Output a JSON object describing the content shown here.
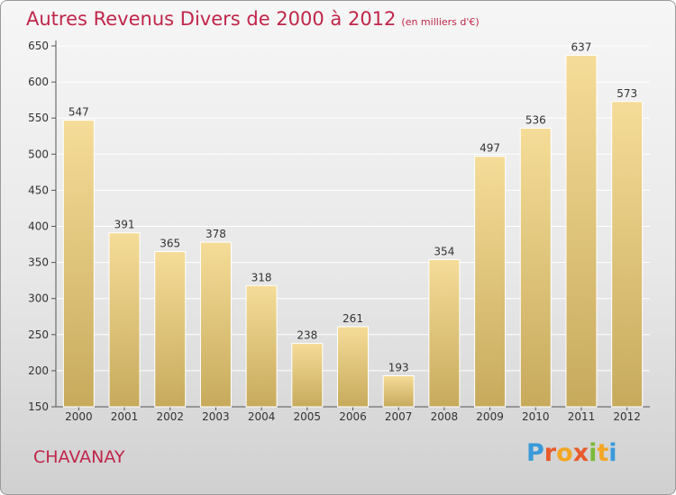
{
  "header": {
    "title": "Autres Revenus Divers de 2000 à 2012",
    "subtitle": "(en milliers d'€)"
  },
  "footer": {
    "commune": "CHAVANAY",
    "logo_text": "Proxiti"
  },
  "colors": {
    "title": "#c0264a",
    "bar_light": "#f5dc98",
    "bar_dark": "#c7aa5c"
  },
  "chart_data": {
    "type": "bar",
    "title": "Autres Revenus Divers de 2000 à 2012",
    "subtitle": "(en milliers d'€)",
    "categories": [
      "2000",
      "2001",
      "2002",
      "2003",
      "2004",
      "2005",
      "2006",
      "2007",
      "2008",
      "2009",
      "2010",
      "2011",
      "2012"
    ],
    "values": [
      547,
      391,
      365,
      378,
      318,
      238,
      261,
      193,
      354,
      497,
      536,
      637,
      573
    ],
    "ylim": [
      150,
      650
    ],
    "yticks": [
      150,
      200,
      250,
      300,
      350,
      400,
      450,
      500,
      550,
      600,
      650
    ],
    "grid": true,
    "xlabel": "",
    "ylabel": ""
  }
}
